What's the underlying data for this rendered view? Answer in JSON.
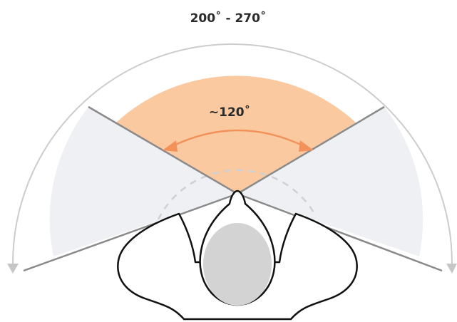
{
  "labels": {
    "total_field": "200˚ - 270˚",
    "focus_field": "~120˚"
  },
  "colors": {
    "background": "#ffffff",
    "peripheral_fill": "#eef0f3",
    "focus_fill": "#fbc9a0",
    "focus_arrow": "#f2925a",
    "sight_line": "#8a8a8a",
    "outer_arc": "#cccccc",
    "dashed_arc": "#cdd0d4",
    "head_fill": "#d3d3d3",
    "outline": "#111111"
  },
  "icons": {
    "head": "head-top-view-icon",
    "shoulders": "shoulders-outline-icon"
  }
}
